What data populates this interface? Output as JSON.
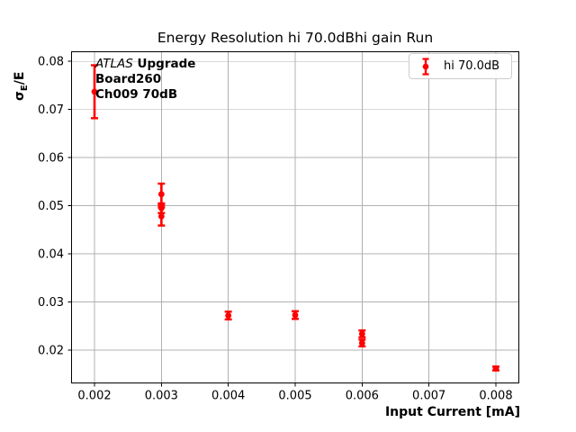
{
  "figure": {
    "background": "#ffffff",
    "text_color": "#000000"
  },
  "chart_data": {
    "type": "scatter",
    "title": "Energy Resolution hi 70.0dBhi gain Run",
    "xlabel": "Input Current [mA]",
    "ylabel_parts": {
      "sigma": "σ",
      "subscript": "E",
      "suffix": "/E"
    },
    "legend": {
      "label": "hi 70.0dB",
      "location": "upper right"
    },
    "annotation": {
      "italic": "ATLAS",
      "bold_suffix": " Upgrade",
      "line2": "Board260",
      "line3": "Ch009 70dB"
    },
    "series": [
      {
        "name": "hi 70.0dB",
        "color": "#ff0000",
        "marker": "circle-with-errorbars",
        "points": [
          {
            "x": 0.002,
            "y": 0.0737,
            "yerr": 0.0055
          },
          {
            "x": 0.003,
            "y": 0.0524,
            "yerr": 0.0022
          },
          {
            "x": 0.003,
            "y": 0.0495,
            "yerr": 0.001
          },
          {
            "x": 0.003,
            "y": 0.0478,
            "yerr": 0.0019
          },
          {
            "x": 0.004,
            "y": 0.0272,
            "yerr": 0.0008
          },
          {
            "x": 0.005,
            "y": 0.0273,
            "yerr": 0.0008
          },
          {
            "x": 0.006,
            "y": 0.0234,
            "yerr": 0.0007
          },
          {
            "x": 0.006,
            "y": 0.0215,
            "yerr": 0.0007
          },
          {
            "x": 0.008,
            "y": 0.0162,
            "yerr": 0.0004
          }
        ]
      }
    ],
    "xlim": [
      0.00165,
      0.00835
    ],
    "ylim": [
      0.0131,
      0.0821
    ],
    "xtick_values": [
      0.002,
      0.003,
      0.004,
      0.005,
      0.006,
      0.007,
      0.008
    ],
    "xtick_labels": [
      "0.002",
      "0.003",
      "0.004",
      "0.005",
      "0.006",
      "0.007",
      "0.008"
    ],
    "ytick_values": [
      0.02,
      0.03,
      0.04,
      0.05,
      0.06,
      0.07,
      0.08
    ],
    "ytick_labels": [
      "0.02",
      "0.03",
      "0.04",
      "0.05",
      "0.06",
      "0.07",
      "0.08"
    ],
    "grid": true,
    "grid_color": "#b0b0b0",
    "spine_color": "#000000"
  }
}
